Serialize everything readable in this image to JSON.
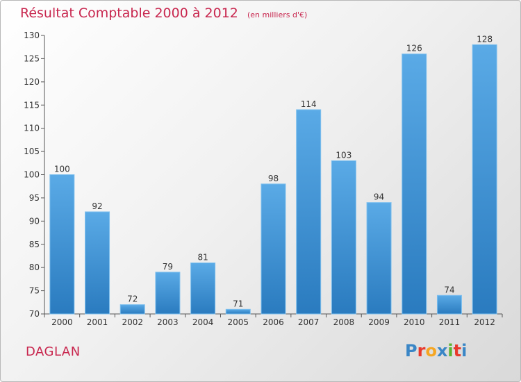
{
  "title": "Résultat Comptable 2000 à 2012",
  "unit": "(en milliers d'€)",
  "commune": "DAGLAN",
  "logo": {
    "letters": [
      "P",
      "r",
      "o",
      "x",
      "i",
      "t",
      "i"
    ],
    "colors": [
      "#3a86c6",
      "#e8392c",
      "#f5a623",
      "#3a86c6",
      "#5bb432",
      "#e8392c",
      "#3a86c6"
    ]
  },
  "colors": {
    "accent": "#c8264e",
    "bar_top": "#5aaae6",
    "bar_bottom": "#2a7bbf"
  },
  "chart_data": {
    "type": "bar",
    "title": "Résultat Comptable 2000 à 2012",
    "xlabel": "",
    "ylabel": "",
    "categories": [
      "2000",
      "2001",
      "2002",
      "2003",
      "2004",
      "2005",
      "2006",
      "2007",
      "2008",
      "2009",
      "2010",
      "2011",
      "2012"
    ],
    "values": [
      100,
      92,
      72,
      79,
      81,
      71,
      98,
      114,
      103,
      94,
      126,
      74,
      128
    ],
    "ylim": [
      70,
      130
    ],
    "yticks": [
      70,
      75,
      80,
      85,
      90,
      95,
      100,
      105,
      110,
      115,
      120,
      125,
      130
    ],
    "grid": false,
    "legend": "none"
  }
}
